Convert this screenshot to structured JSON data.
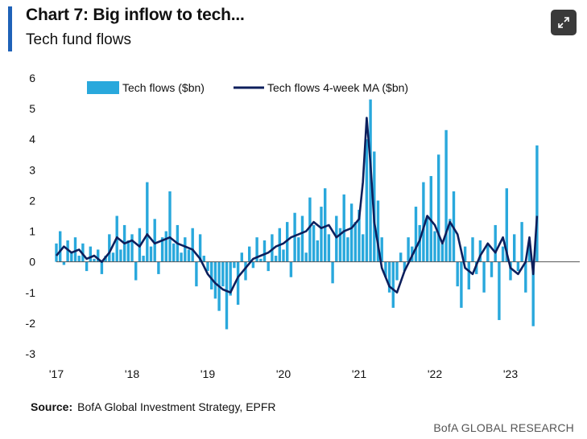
{
  "header": {
    "title": "Chart 7: Big inflow to tech...",
    "subtitle": "Tech fund flows",
    "expand_icon": "expand-arrows-icon"
  },
  "footer": {
    "source_label": "Source:",
    "source_text": "BofA Global Investment Strategy, EPFR",
    "brand": "BofA GLOBAL RESEARCH"
  },
  "colors": {
    "bars": "#29a8dc",
    "line": "#0d1f5c",
    "accent": "#1f62b8"
  },
  "chart_data": {
    "type": "bar",
    "title": "Chart 7: Big inflow to tech...",
    "subtitle": "Tech fund flows",
    "xlabel": "",
    "ylabel": "",
    "x_range": [
      2017.0,
      2024.0
    ],
    "ylim": [
      -3,
      6
    ],
    "y_ticks": [
      6,
      5,
      4,
      3,
      2,
      1,
      0,
      -1,
      -2,
      -3
    ],
    "x_ticks": [
      {
        "label": "'17",
        "x": 2017.0
      },
      {
        "label": "'18",
        "x": 2018.0
      },
      {
        "label": "'19",
        "x": 2019.0
      },
      {
        "label": "'20",
        "x": 2020.0
      },
      {
        "label": "'21",
        "x": 2021.0
      },
      {
        "label": "'22",
        "x": 2022.0
      },
      {
        "label": "'23",
        "x": 2023.0
      }
    ],
    "grid": false,
    "legend_position": "top",
    "series": [
      {
        "name": "Tech flows ($bn)",
        "kind": "bar",
        "x": [
          2017.0,
          2017.05,
          2017.1,
          2017.15,
          2017.2,
          2017.25,
          2017.3,
          2017.35,
          2017.4,
          2017.45,
          2017.5,
          2017.55,
          2017.6,
          2017.65,
          2017.7,
          2017.75,
          2017.8,
          2017.85,
          2017.9,
          2017.95,
          2018.0,
          2018.05,
          2018.1,
          2018.15,
          2018.2,
          2018.25,
          2018.3,
          2018.35,
          2018.4,
          2018.45,
          2018.5,
          2018.55,
          2018.6,
          2018.65,
          2018.7,
          2018.75,
          2018.8,
          2018.85,
          2018.9,
          2018.95,
          2019.0,
          2019.05,
          2019.1,
          2019.15,
          2019.2,
          2019.25,
          2019.3,
          2019.35,
          2019.4,
          2019.45,
          2019.5,
          2019.55,
          2019.6,
          2019.65,
          2019.7,
          2019.75,
          2019.8,
          2019.85,
          2019.9,
          2019.95,
          2020.0,
          2020.05,
          2020.1,
          2020.15,
          2020.2,
          2020.25,
          2020.3,
          2020.35,
          2020.4,
          2020.45,
          2020.5,
          2020.55,
          2020.6,
          2020.65,
          2020.7,
          2020.75,
          2020.8,
          2020.85,
          2020.9,
          2020.95,
          2021.0,
          2021.05,
          2021.1,
          2021.15,
          2021.2,
          2021.25,
          2021.3,
          2021.35,
          2021.4,
          2021.45,
          2021.5,
          2021.55,
          2021.6,
          2021.65,
          2021.7,
          2021.75,
          2021.8,
          2021.85,
          2021.9,
          2021.95,
          2022.0,
          2022.05,
          2022.1,
          2022.15,
          2022.2,
          2022.25,
          2022.3,
          2022.35,
          2022.4,
          2022.45,
          2022.5,
          2022.55,
          2022.6,
          2022.65,
          2022.7,
          2022.75,
          2022.8,
          2022.85,
          2022.9,
          2022.95,
          2023.0,
          2023.05,
          2023.1,
          2023.15,
          2023.2,
          2023.25,
          2023.3,
          2023.35
        ],
        "values": [
          0.6,
          1.0,
          -0.1,
          0.7,
          0.3,
          0.8,
          0.2,
          0.6,
          -0.3,
          0.5,
          0.1,
          0.4,
          -0.4,
          0.2,
          0.9,
          0.3,
          1.5,
          0.4,
          1.2,
          0.7,
          0.9,
          -0.6,
          1.1,
          0.2,
          2.6,
          0.5,
          1.4,
          -0.4,
          0.8,
          1.0,
          2.3,
          0.6,
          1.2,
          0.3,
          0.8,
          0.4,
          1.1,
          -0.8,
          0.9,
          0.2,
          -0.3,
          -0.9,
          -1.2,
          -1.6,
          -0.8,
          -2.2,
          -1.1,
          -0.2,
          -1.4,
          0.3,
          -0.6,
          0.5,
          -0.2,
          0.8,
          0.1,
          0.7,
          -0.3,
          0.9,
          0.2,
          1.1,
          0.4,
          1.3,
          -0.5,
          1.6,
          0.8,
          1.5,
          0.3,
          2.1,
          1.2,
          0.7,
          1.8,
          2.4,
          0.9,
          -0.7,
          1.5,
          1.1,
          2.2,
          0.8,
          1.9,
          1.3,
          1.7,
          0.9,
          4.0,
          5.3,
          3.6,
          2.0,
          0.8,
          -0.5,
          -1.0,
          -1.5,
          -0.6,
          0.3,
          -0.3,
          0.8,
          0.5,
          1.8,
          1.2,
          2.6,
          1.5,
          2.8,
          1.0,
          3.5,
          0.6,
          4.3,
          1.4,
          2.3,
          -0.8,
          -1.5,
          0.5,
          -0.9,
          0.8,
          -0.4,
          0.7,
          -1.0,
          0.6,
          -0.5,
          1.2,
          -1.9,
          0.5,
          2.4,
          -0.6,
          0.9,
          -0.3,
          1.3,
          -1.0,
          0.7,
          -2.1,
          3.8
        ]
      },
      {
        "name": "Tech flows 4-week MA ($bn)",
        "kind": "line",
        "x": [
          2017.0,
          2017.1,
          2017.2,
          2017.3,
          2017.4,
          2017.5,
          2017.6,
          2017.7,
          2017.8,
          2017.9,
          2018.0,
          2018.1,
          2018.2,
          2018.3,
          2018.4,
          2018.5,
          2018.6,
          2018.7,
          2018.8,
          2018.9,
          2019.0,
          2019.1,
          2019.2,
          2019.3,
          2019.4,
          2019.5,
          2019.6,
          2019.7,
          2019.8,
          2019.9,
          2020.0,
          2020.1,
          2020.2,
          2020.3,
          2020.4,
          2020.5,
          2020.6,
          2020.7,
          2020.8,
          2020.9,
          2021.0,
          2021.05,
          2021.1,
          2021.15,
          2021.2,
          2021.3,
          2021.4,
          2021.5,
          2021.6,
          2021.7,
          2021.8,
          2021.9,
          2022.0,
          2022.1,
          2022.2,
          2022.3,
          2022.4,
          2022.5,
          2022.6,
          2022.7,
          2022.8,
          2022.9,
          2023.0,
          2023.1,
          2023.2,
          2023.25,
          2023.3,
          2023.35
        ],
        "values": [
          0.2,
          0.5,
          0.3,
          0.4,
          0.1,
          0.2,
          0.0,
          0.3,
          0.8,
          0.6,
          0.7,
          0.5,
          0.9,
          0.6,
          0.7,
          0.8,
          0.6,
          0.5,
          0.4,
          0.1,
          -0.4,
          -0.7,
          -0.9,
          -1.0,
          -0.5,
          -0.2,
          0.1,
          0.2,
          0.3,
          0.5,
          0.6,
          0.8,
          0.9,
          1.0,
          1.3,
          1.1,
          1.2,
          0.8,
          1.0,
          1.1,
          1.4,
          2.6,
          4.7,
          3.2,
          1.3,
          -0.2,
          -0.8,
          -1.0,
          -0.3,
          0.2,
          0.7,
          1.5,
          1.2,
          0.6,
          1.3,
          0.9,
          -0.2,
          -0.4,
          0.2,
          0.6,
          0.3,
          0.8,
          -0.2,
          -0.4,
          0.0,
          0.8,
          -0.4,
          1.5
        ]
      }
    ]
  }
}
